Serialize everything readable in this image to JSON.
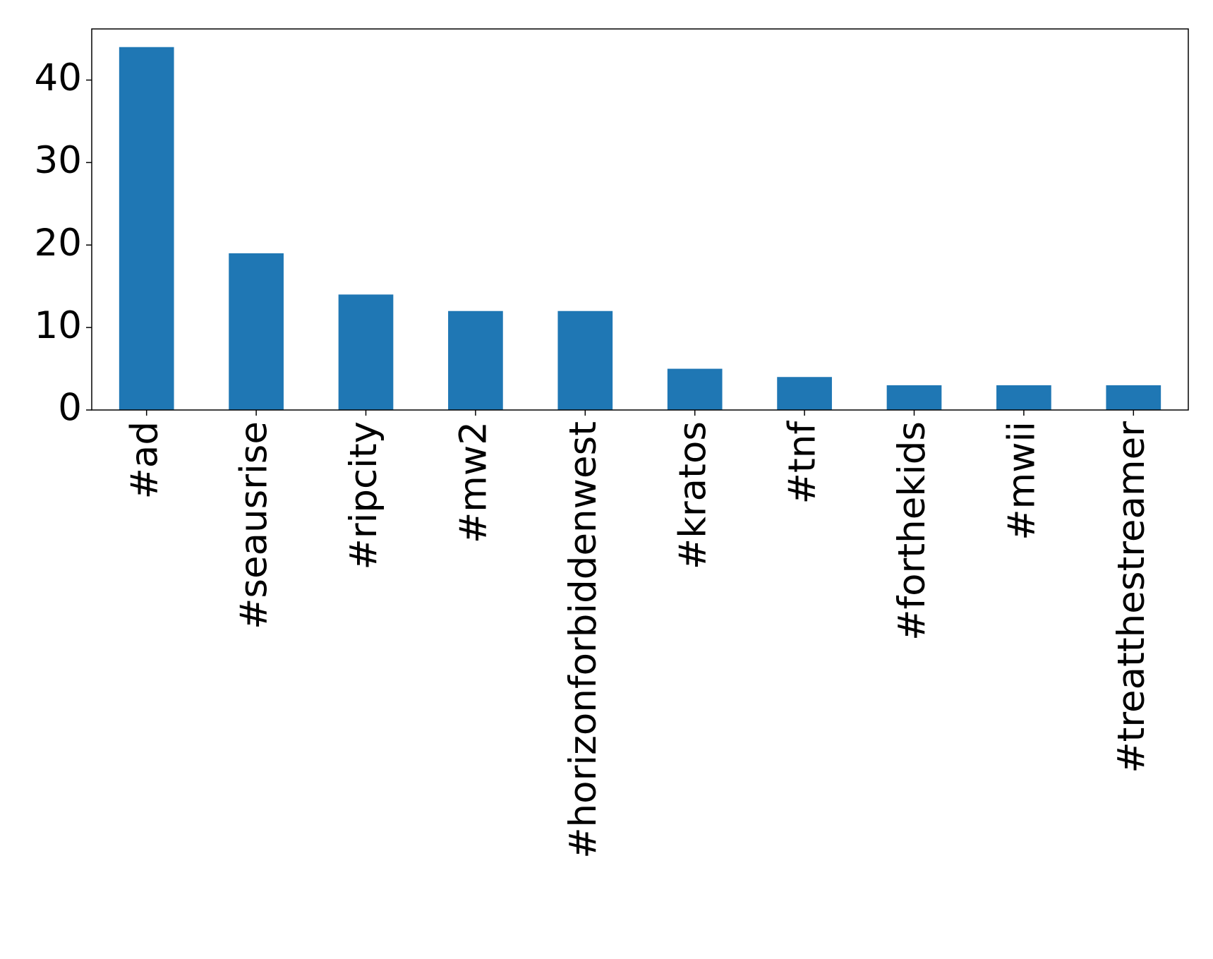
{
  "chart_data": {
    "type": "bar",
    "categories": [
      "#ad",
      "#seausrise",
      "#ripcity",
      "#mw2",
      "#horizonforbiddenwest",
      "#kratos",
      "#tnf",
      "#forthekids",
      "#mwii",
      "#treatthestreamer"
    ],
    "values": [
      44,
      19,
      14,
      12,
      12,
      5,
      4,
      3,
      3,
      3
    ],
    "color": "#1f77b4",
    "ylim": [
      0,
      46.2
    ],
    "yticks": [
      0,
      10,
      20,
      30,
      40
    ],
    "grid": false
  }
}
